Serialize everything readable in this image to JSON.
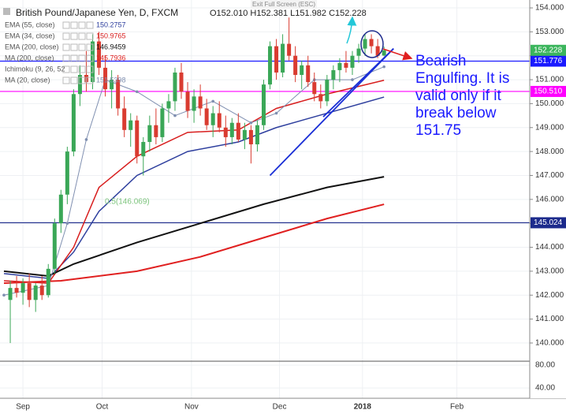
{
  "chart_data": {
    "type": "candlestick",
    "title": "British Pound/Japanese Yen, D, FXCM",
    "ohlc_readout": "O152.010 H152.381 L151.982 C152.228",
    "exit_button": "Exit Full Screen (ESC)",
    "up_color": "#3aa757",
    "down_color": "#d93b30",
    "candles": [
      [
        141.8,
        142.6,
        140.0,
        142.3
      ],
      [
        142.3,
        142.8,
        141.9,
        142.1
      ],
      [
        142.1,
        142.7,
        141.6,
        142.5
      ],
      [
        142.5,
        142.9,
        141.5,
        141.8
      ],
      [
        141.8,
        142.5,
        141.3,
        142.4
      ],
      [
        142.4,
        142.8,
        141.8,
        142.0
      ],
      [
        142.0,
        143.3,
        141.9,
        143.1
      ],
      [
        143.1,
        145.2,
        142.9,
        145.0
      ],
      [
        145.0,
        146.4,
        144.6,
        146.2
      ],
      [
        146.2,
        148.2,
        145.8,
        148.0
      ],
      [
        148.0,
        150.6,
        147.8,
        150.4
      ],
      [
        150.4,
        151.6,
        149.9,
        151.2
      ],
      [
        151.2,
        152.2,
        150.5,
        150.9
      ],
      [
        150.9,
        152.9,
        150.6,
        152.6
      ],
      [
        152.6,
        153.0,
        151.2,
        151.5
      ],
      [
        151.5,
        152.0,
        150.3,
        150.6
      ],
      [
        150.6,
        151.4,
        149.8,
        151.0
      ],
      [
        151.0,
        151.2,
        149.5,
        149.8
      ],
      [
        149.8,
        150.3,
        148.6,
        148.9
      ],
      [
        148.9,
        149.6,
        148.2,
        149.3
      ],
      [
        149.3,
        149.5,
        147.5,
        147.8
      ],
      [
        147.8,
        148.6,
        147.0,
        148.4
      ],
      [
        148.4,
        149.5,
        148.0,
        149.1
      ],
      [
        149.1,
        149.8,
        148.3,
        148.6
      ],
      [
        148.6,
        150.0,
        148.4,
        149.8
      ],
      [
        149.8,
        150.4,
        149.2,
        150.1
      ],
      [
        150.1,
        151.5,
        149.7,
        151.3
      ],
      [
        151.3,
        151.7,
        150.2,
        150.5
      ],
      [
        150.5,
        150.9,
        149.4,
        149.7
      ],
      [
        149.7,
        150.6,
        149.2,
        150.3
      ],
      [
        150.3,
        150.8,
        149.5,
        149.8
      ],
      [
        149.8,
        150.2,
        148.9,
        149.1
      ],
      [
        149.1,
        149.9,
        148.6,
        149.6
      ],
      [
        149.6,
        150.1,
        148.8,
        149.0
      ],
      [
        149.0,
        149.5,
        148.2,
        148.6
      ],
      [
        148.6,
        149.4,
        148.3,
        149.2
      ],
      [
        149.2,
        149.6,
        148.4,
        148.5
      ],
      [
        148.5,
        149.2,
        148.1,
        148.9
      ],
      [
        148.9,
        149.1,
        147.5,
        148.3
      ],
      [
        148.3,
        149.3,
        148.0,
        149.1
      ],
      [
        149.1,
        151.0,
        148.9,
        150.8
      ],
      [
        150.8,
        152.6,
        150.6,
        152.4
      ],
      [
        152.4,
        152.7,
        151.0,
        151.3
      ],
      [
        151.3,
        152.9,
        151.1,
        152.5
      ],
      [
        152.5,
        153.6,
        151.8,
        152.0
      ],
      [
        152.0,
        152.4,
        150.9,
        151.2
      ],
      [
        151.2,
        151.8,
        150.6,
        151.6
      ],
      [
        151.6,
        152.0,
        150.7,
        150.9
      ],
      [
        150.9,
        151.3,
        150.1,
        150.4
      ],
      [
        150.4,
        150.8,
        149.8,
        150.1
      ],
      [
        150.1,
        151.2,
        149.9,
        151.0
      ],
      [
        151.0,
        151.6,
        150.6,
        151.4
      ],
      [
        151.4,
        151.9,
        150.9,
        151.7
      ],
      [
        151.7,
        152.2,
        151.3,
        151.5
      ],
      [
        151.5,
        152.2,
        151.2,
        152.0
      ],
      [
        152.0,
        152.5,
        151.7,
        152.3
      ],
      [
        152.3,
        152.9,
        152.0,
        152.7
      ],
      [
        152.7,
        152.9,
        152.1,
        152.4
      ],
      [
        152.4,
        152.7,
        151.9,
        152.0
      ],
      [
        152.01,
        152.381,
        151.982,
        152.228
      ]
    ],
    "xlim": [
      -1,
      82
    ],
    "xticks": [
      {
        "value": 2,
        "label": "Sep"
      },
      {
        "value": 14.5,
        "label": "Oct"
      },
      {
        "value": 28.6,
        "label": "Nov"
      },
      {
        "value": 42.5,
        "label": "Dec"
      },
      {
        "value": 55.6,
        "label": "2018"
      },
      {
        "value": 70.5,
        "label": "Feb"
      }
    ],
    "ylim": [
      139.24,
      154.33
    ],
    "yticks": [
      {
        "value": 140,
        "label": "140.000"
      },
      {
        "value": 141,
        "label": "141.000"
      },
      {
        "value": 142,
        "label": "142.000"
      },
      {
        "value": 143,
        "label": "143.000"
      },
      {
        "value": 144,
        "label": "144.000"
      },
      {
        "value": 145,
        "label": "145.000"
      },
      {
        "value": 146,
        "label": "146.000"
      },
      {
        "value": 147,
        "label": "147.000"
      },
      {
        "value": 148,
        "label": "148.000"
      },
      {
        "value": 149,
        "label": "149.000"
      },
      {
        "value": 150,
        "label": "150.000"
      },
      {
        "value": 151,
        "label": "151.000"
      },
      {
        "value": 152,
        "label": "152.000"
      },
      {
        "value": 153,
        "label": "153.000"
      },
      {
        "value": 154,
        "label": "154.000"
      }
    ],
    "indicators": [
      {
        "name": "EMA (55, close)",
        "color": "#2e3f9e",
        "width": 1.5,
        "x": [
          -1,
          6,
          10,
          14,
          20,
          28,
          36,
          42,
          50,
          59
        ],
        "values": [
          142.9,
          142.7,
          143.8,
          145.5,
          147.0,
          148.0,
          148.4,
          149.0,
          149.6,
          150.2757
        ]
      },
      {
        "name": "EMA (34, close)",
        "color": "#d81e1e",
        "width": 1.5,
        "x": [
          -1,
          6,
          10,
          14,
          20,
          28,
          36,
          42,
          50,
          59
        ],
        "values": [
          142.6,
          142.5,
          144.0,
          146.5,
          147.8,
          148.8,
          148.9,
          149.8,
          150.4,
          150.9765
        ]
      },
      {
        "name": "EMA (200, close)",
        "color": "#111111",
        "width": 2,
        "x": [
          -1,
          6,
          10,
          20,
          30,
          40,
          50,
          59
        ],
        "values": [
          143.0,
          142.8,
          143.3,
          144.2,
          145.0,
          145.8,
          146.5,
          146.9459
        ]
      },
      {
        "name": "MA (200, close)",
        "color": "#e02020",
        "width": 2,
        "x": [
          -1,
          8,
          20,
          30,
          40,
          50,
          59
        ],
        "values": [
          142.5,
          142.6,
          143.0,
          143.6,
          144.4,
          145.2,
          145.7936
        ]
      },
      {
        "name": "MA (20, close)",
        "color": "#7f8fb0",
        "width": 1,
        "dots": true,
        "x": [
          -1,
          6,
          9,
          12,
          15,
          20,
          26,
          32,
          38,
          42,
          48,
          54,
          59
        ],
        "values": [
          142.0,
          142.4,
          145.0,
          148.5,
          151.0,
          150.5,
          149.5,
          150.1,
          149.2,
          149.6,
          151.0,
          151.0,
          151.5398
        ]
      }
    ],
    "hidden_indicator": "Ichimoku (9, 26, 52",
    "levels": [
      {
        "value": 151.776,
        "color": "#1a1aff"
      },
      {
        "value": {
          "value": 150.51,
          "label": "150.510"
        },
        "color": "#ff00ff"
      },
      {
        "value": 145.024,
        "color": "#1c2a8c"
      }
    ],
    "last_price_color": "#3bb55c",
    "trendlines": [
      {
        "color": "#1a2fd6",
        "x": [
          41,
          60.5
        ],
        "y": [
          147.0,
          152.3
        ]
      },
      {
        "color": "#1a2fd6",
        "x": [
          49.4,
          60.5
        ],
        "y": [
          149.45,
          152.3
        ]
      }
    ],
    "fib_label": "0.5(146.069)",
    "annotation_lines": [
      "Bearish",
      "Engulfing. It is",
      "valid only if it",
      "break below",
      "151.75"
    ],
    "lower_pane": {
      "ylim": [
        22,
        87
      ],
      "yticks": [
        {
          "value": 80,
          "label": "80.00"
        },
        {
          "value": 40,
          "label": "40.00"
        }
      ]
    }
  }
}
